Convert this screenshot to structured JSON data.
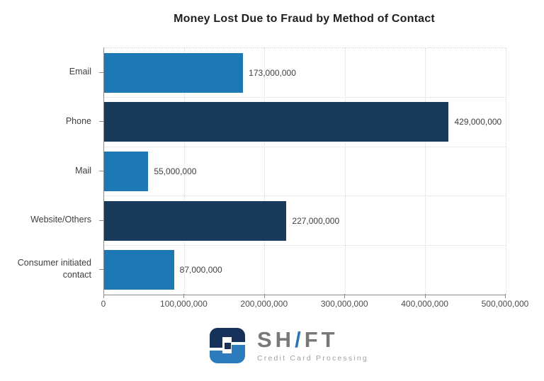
{
  "chart_data": {
    "type": "bar",
    "orientation": "horizontal",
    "title": "Money Lost Due to Fraud by Method of Contact",
    "categories": [
      "Email",
      "Phone",
      "Mail",
      "Website/Others",
      "Consumer initiated contact"
    ],
    "values": [
      173000000,
      429000000,
      55000000,
      227000000,
      87000000
    ],
    "value_labels": [
      "173,000,000",
      "429,000,000",
      "55,000,000",
      "227,000,000",
      "87,000,000"
    ],
    "bar_colors": [
      "#1E78B4",
      "#1A3A5C",
      "#1E78B4",
      "#1A3A5C",
      "#1E78B4"
    ],
    "xlim": [
      0,
      500000000
    ],
    "xticks": [
      0,
      100000000,
      200000000,
      300000000,
      400000000,
      500000000
    ],
    "xtick_labels": [
      "0",
      "100,000,000",
      "200,000,000",
      "300,000,000",
      "400,000,000",
      "500,000,000"
    ],
    "xlabel": "",
    "ylabel": "",
    "grid": "dotted vertical gridlines at x ticks, dotted horizontal lines at category boundaries",
    "legend": "none",
    "colors": {
      "light_blue": "#1E78B4",
      "dark_navy": "#1A3A5C",
      "axis": "#8c8c8c",
      "gridline": "#d4dbe1"
    }
  },
  "logo": {
    "wordmark_left": "SH",
    "wordmark_slash": "/",
    "wordmark_right": "FT",
    "subtitle": "Credit Card Processing",
    "icon": "shift-interlocked-rounded-square",
    "colors": {
      "navy": "#16325B",
      "blue": "#2B7BBD",
      "gray": "#77787b",
      "slash_blue": "#2e74b5"
    }
  }
}
